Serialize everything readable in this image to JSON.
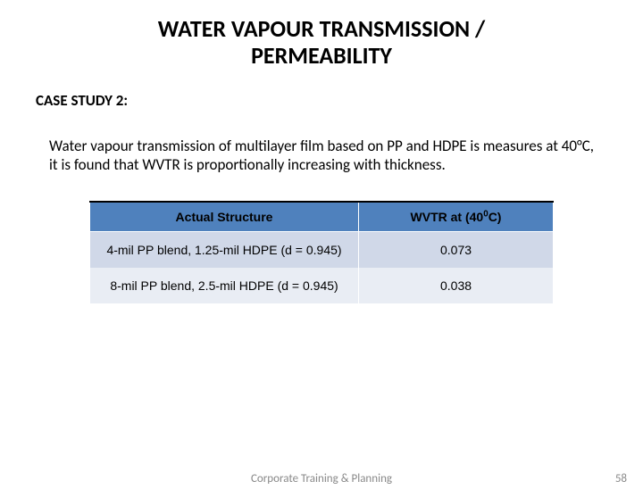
{
  "title_line1": "WATER VAPOUR TRANSMISSION /",
  "title_line2": "PERMEABILITY",
  "case_label": "CASE STUDY 2:",
  "body_text": " Water vapour transmission of multilayer film based on PP and HDPE is measures at 40°C, it is found that WVTR is proportionally increasing with thickness.",
  "table": {
    "header_bg": "#4f81bd",
    "row_odd_bg": "#d0d8e8",
    "row_even_bg": "#e9edf4",
    "columns": [
      {
        "label_html": "Actual Structure"
      },
      {
        "label_html": "WVTR at (40<sup>0</sup>C)"
      }
    ],
    "rows": [
      [
        "4-mil PP blend, 1.25-mil HDPE (d = 0.945)",
        "0.073"
      ],
      [
        "8-mil PP blend, 2.5-mil HDPE (d = 0.945)",
        "0.038"
      ]
    ]
  },
  "footer": "Corporate Training & Planning",
  "page_number": "58"
}
